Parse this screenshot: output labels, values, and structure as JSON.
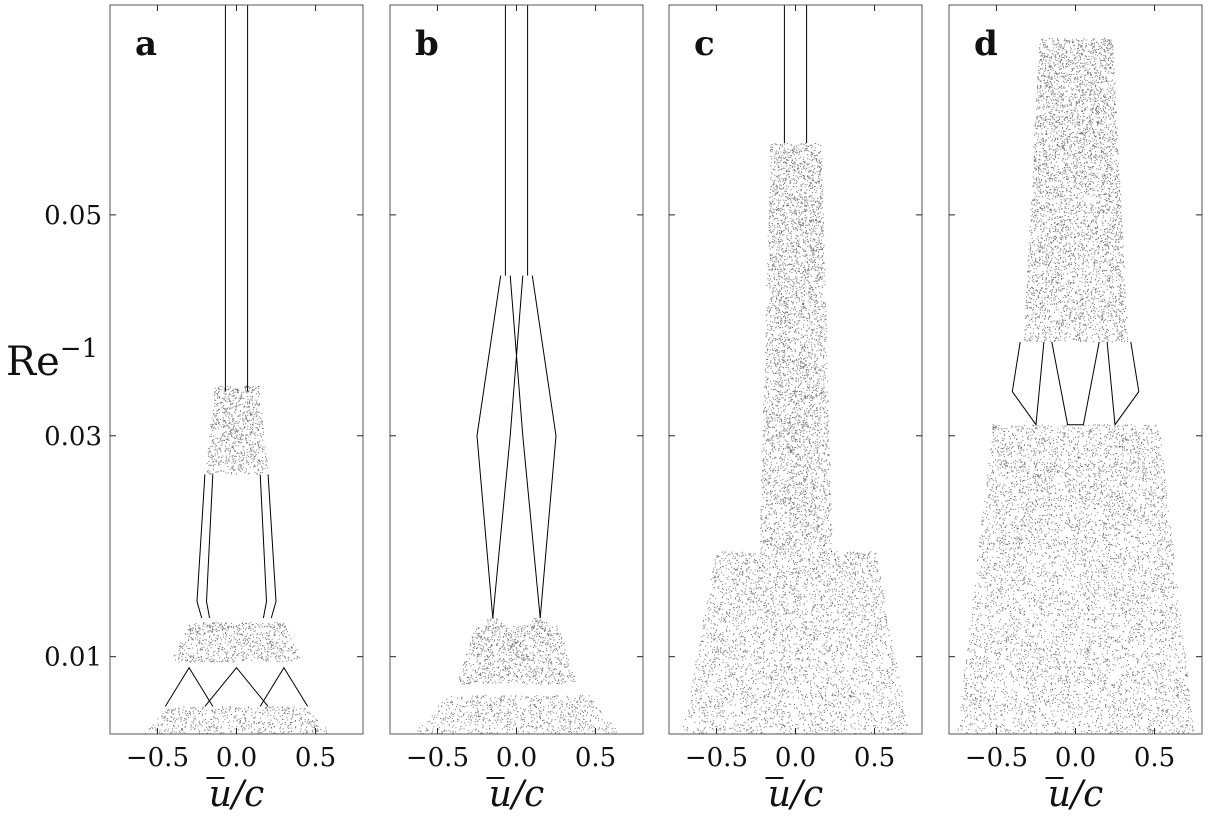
{
  "chart_data": [
    {
      "type": "scatter",
      "panel_label": "a",
      "xlabel": "u/c",
      "ylabel": "Re⁻¹",
      "xlim": [
        -0.8,
        0.8
      ],
      "ylim": [
        0.003,
        0.069
      ],
      "xticks": [
        -0.5,
        0.0,
        0.5
      ],
      "xtick_labels": [
        "−0.5",
        "0.0",
        "0.5"
      ],
      "yticks": [
        0.01,
        0.03,
        0.05
      ],
      "ytick_labels": [
        "0.01",
        "0.03",
        "0.05"
      ],
      "show_ylabel": true,
      "dense_regions": [
        {
          "x": [
            -0.6,
            0.6
          ],
          "y": [
            0.003,
            0.0055
          ],
          "density": 0.65
        },
        {
          "x": [
            -0.42,
            0.42
          ],
          "y": [
            0.0095,
            0.0131
          ],
          "density": 0.85
        },
        {
          "x": [
            -0.2,
            0.2
          ],
          "y": [
            0.0265,
            0.0345
          ],
          "density": 0.95
        }
      ],
      "branch_lines": [
        {
          "points": [
            [
              -0.07,
              0.069
            ],
            [
              -0.07,
              0.034
            ]
          ]
        },
        {
          "points": [
            [
              0.07,
              0.069
            ],
            [
              0.07,
              0.034
            ]
          ]
        },
        {
          "points": [
            [
              -0.2,
              0.0265
            ],
            [
              -0.25,
              0.015
            ],
            [
              -0.22,
              0.0135
            ]
          ]
        },
        {
          "points": [
            [
              -0.15,
              0.0265
            ],
            [
              -0.19,
              0.015
            ],
            [
              -0.17,
              0.0135
            ]
          ]
        },
        {
          "points": [
            [
              0.15,
              0.0265
            ],
            [
              0.19,
              0.015
            ],
            [
              0.17,
              0.0135
            ]
          ]
        },
        {
          "points": [
            [
              0.2,
              0.0265
            ],
            [
              0.25,
              0.015
            ],
            [
              0.22,
              0.0135
            ]
          ]
        },
        {
          "points": [
            [
              -0.45,
              0.0055
            ],
            [
              -0.3,
              0.009
            ],
            [
              -0.15,
              0.0055
            ]
          ]
        },
        {
          "points": [
            [
              0.15,
              0.0055
            ],
            [
              0.3,
              0.009
            ],
            [
              0.45,
              0.0055
            ]
          ]
        },
        {
          "points": [
            [
              -0.2,
              0.0055
            ],
            [
              0.0,
              0.009
            ],
            [
              0.2,
              0.0055
            ]
          ]
        }
      ]
    },
    {
      "type": "scatter",
      "panel_label": "b",
      "xlabel": "u/c",
      "ylabel": "",
      "xlim": [
        -0.8,
        0.8
      ],
      "ylim": [
        0.003,
        0.069
      ],
      "xticks": [
        -0.5,
        0.0,
        0.5
      ],
      "xtick_labels": [
        "−0.5",
        "0.0",
        "0.5"
      ],
      "yticks": [
        0.01,
        0.03,
        0.05
      ],
      "ytick_labels": [],
      "show_ylabel": false,
      "dense_regions": [
        {
          "x": [
            -0.65,
            0.65
          ],
          "y": [
            0.003,
            0.0065
          ],
          "density": 0.6
        },
        {
          "x": [
            -0.38,
            0.38
          ],
          "y": [
            0.0075,
            0.0128
          ],
          "density": 0.85
        },
        {
          "x": [
            -0.2,
            -0.08
          ],
          "y": [
            0.0125,
            0.0135
          ],
          "density": 0.95
        },
        {
          "x": [
            0.08,
            0.2
          ],
          "y": [
            0.0125,
            0.0135
          ],
          "density": 0.95
        }
      ],
      "branch_lines": [
        {
          "points": [
            [
              -0.07,
              0.069
            ],
            [
              -0.07,
              0.0445
            ]
          ]
        },
        {
          "points": [
            [
              0.07,
              0.069
            ],
            [
              0.07,
              0.0445
            ]
          ]
        },
        {
          "points": [
            [
              -0.1,
              0.0445
            ],
            [
              -0.25,
              0.03
            ],
            [
              -0.15,
              0.0135
            ]
          ]
        },
        {
          "points": [
            [
              -0.04,
              0.0445
            ],
            [
              0.04,
              0.03
            ],
            [
              0.15,
              0.0135
            ]
          ]
        },
        {
          "points": [
            [
              0.1,
              0.0445
            ],
            [
              0.25,
              0.03
            ],
            [
              0.15,
              0.0135
            ]
          ]
        },
        {
          "points": [
            [
              0.04,
              0.0445
            ],
            [
              -0.04,
              0.03
            ],
            [
              -0.15,
              0.0135
            ]
          ]
        }
      ]
    },
    {
      "type": "scatter",
      "panel_label": "c",
      "xlabel": "u/c",
      "ylabel": "",
      "xlim": [
        -0.8,
        0.8
      ],
      "ylim": [
        0.003,
        0.069
      ],
      "xticks": [
        -0.5,
        0.0,
        0.5
      ],
      "xtick_labels": [
        "−0.5",
        "0.0",
        "0.5"
      ],
      "yticks": [
        0.01,
        0.03,
        0.05
      ],
      "ytick_labels": [],
      "show_ylabel": false,
      "dense_regions": [
        {
          "x": [
            -0.72,
            0.72
          ],
          "y": [
            0.003,
            0.0195
          ],
          "density": 0.55
        },
        {
          "x": [
            -0.23,
            0.23
          ],
          "y": [
            0.0195,
            0.0565
          ],
          "density": 0.9
        }
      ],
      "branch_lines": [
        {
          "points": [
            [
              -0.07,
              0.069
            ],
            [
              -0.07,
              0.0565
            ]
          ]
        },
        {
          "points": [
            [
              0.07,
              0.069
            ],
            [
              0.07,
              0.0565
            ]
          ]
        }
      ]
    },
    {
      "type": "scatter",
      "panel_label": "d",
      "xlabel": "u/c",
      "ylabel": "",
      "xlim": [
        -0.8,
        0.8
      ],
      "ylim": [
        0.003,
        0.069
      ],
      "xticks": [
        -0.5,
        0.0,
        0.5
      ],
      "xtick_labels": [
        "−0.5",
        "0.0",
        "0.5"
      ],
      "yticks": [
        0.01,
        0.03,
        0.05
      ],
      "ytick_labels": [],
      "show_ylabel": false,
      "dense_regions": [
        {
          "x": [
            -0.75,
            0.75
          ],
          "y": [
            0.003,
            0.031
          ],
          "density": 0.55
        },
        {
          "x": [
            -0.33,
            0.33
          ],
          "y": [
            0.0385,
            0.066
          ],
          "density": 0.9
        }
      ],
      "branch_lines": [
        {
          "points": [
            [
              -0.35,
              0.0385
            ],
            [
              -0.4,
              0.034
            ],
            [
              -0.25,
              0.031
            ],
            [
              -0.2,
              0.0385
            ]
          ]
        },
        {
          "points": [
            [
              -0.15,
              0.0385
            ],
            [
              -0.05,
              0.031
            ],
            [
              0.05,
              0.031
            ],
            [
              0.15,
              0.0385
            ]
          ]
        },
        {
          "points": [
            [
              0.2,
              0.0385
            ],
            [
              0.25,
              0.031
            ],
            [
              0.4,
              0.034
            ],
            [
              0.35,
              0.0385
            ]
          ]
        }
      ]
    }
  ]
}
